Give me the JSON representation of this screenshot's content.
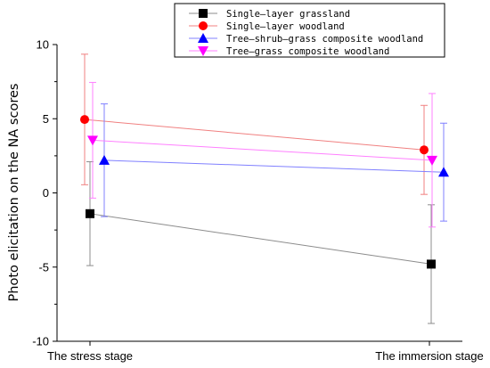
{
  "chart_data": {
    "type": "line",
    "title": "",
    "xlabel": "",
    "ylabel": "Photo elicitation on the NA scores",
    "categories": [
      "The stress stage",
      "The immersion stage"
    ],
    "ylim": [
      -10,
      10
    ],
    "yticks": [
      -10,
      -5,
      0,
      5,
      10
    ],
    "grid": false,
    "legend_position": "top-right",
    "series": [
      {
        "name": "Single—layer grassland",
        "values": [
          -1.4,
          -4.8
        ],
        "error": [
          3.5,
          4.0
        ],
        "marker": "square",
        "color": "#000000",
        "line_color": "#8c8c8c"
      },
      {
        "name": "Single—layer woodland",
        "values": [
          4.95,
          2.9
        ],
        "error": [
          4.4,
          3.0
        ],
        "marker": "circle",
        "color": "#ff0000",
        "line_color": "#f08080"
      },
      {
        "name": "Tree—shrub—grass composite woodland",
        "values": [
          2.2,
          1.4
        ],
        "error": [
          3.8,
          3.3
        ],
        "marker": "triangle-up",
        "color": "#0000ff",
        "line_color": "#8080ff"
      },
      {
        "name": "Tree—grass composite woodland",
        "values": [
          3.55,
          2.2
        ],
        "error": [
          3.9,
          4.5
        ],
        "marker": "triangle-down",
        "color": "#ff00ff",
        "line_color": "#ff80ff"
      }
    ]
  }
}
